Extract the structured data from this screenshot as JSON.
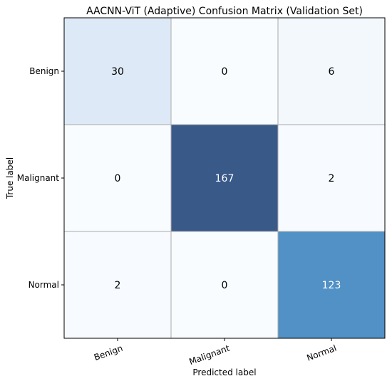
{
  "chart_data": {
    "type": "heatmap",
    "title": "AACNN-ViT (Adaptive) Confusion Matrix (Validation Set)",
    "xlabel": "Predicted label",
    "ylabel": "True label",
    "x_categories": [
      "Benign",
      "Malignant",
      "Normal"
    ],
    "y_categories": [
      "Benign",
      "Malignant",
      "Normal"
    ],
    "values": [
      [
        30,
        0,
        6
      ],
      [
        0,
        167,
        2
      ],
      [
        2,
        0,
        123
      ]
    ],
    "colormap": "Blues",
    "grid": true,
    "colors": {
      "low": "#f7fbff",
      "high": "#2c5185",
      "text_dark": "#000000",
      "text_light": "#ffffff",
      "grid": "#aaaaaa"
    }
  }
}
